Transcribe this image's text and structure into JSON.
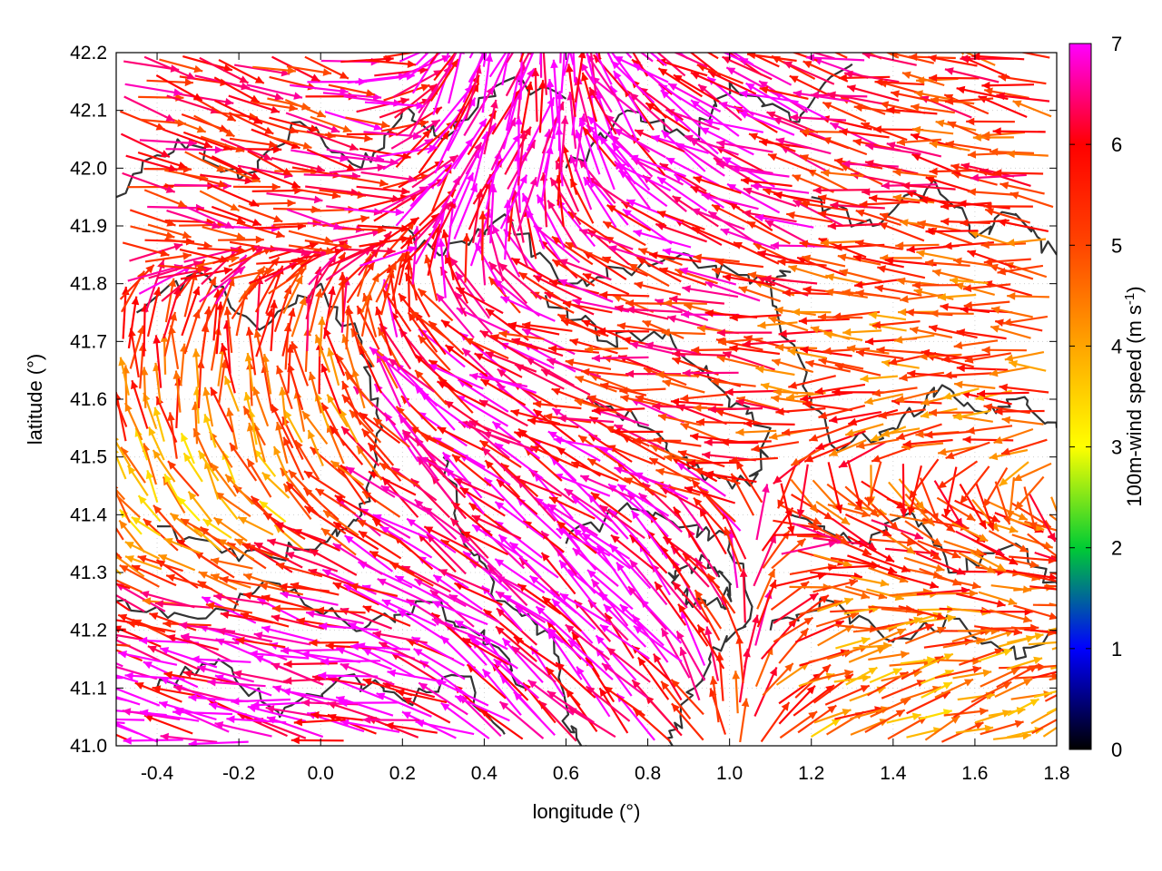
{
  "chart_data": {
    "type": "vector-field",
    "xlabel": "longitude (°)",
    "ylabel": "latitude (°)",
    "xlim": [
      -0.5,
      1.8
    ],
    "ylim": [
      41.0,
      42.2
    ],
    "x_ticks": [
      "-0.4",
      "-0.2",
      "0.0",
      "0.2",
      "0.4",
      "0.6",
      "0.8",
      "1.0",
      "1.2",
      "1.4",
      "1.6",
      "1.8"
    ],
    "y_ticks": [
      "41.0",
      "41.1",
      "41.2",
      "41.3",
      "41.4",
      "41.5",
      "41.6",
      "41.7",
      "41.8",
      "41.9",
      "42.0",
      "42.1",
      "42.2"
    ],
    "grid": true,
    "colorbar": {
      "label_main": "100m-wind speed (m s",
      "label_sup": "-1",
      "label_end": ")",
      "range": [
        0,
        7
      ],
      "ticks": [
        "0",
        "1",
        "2",
        "3",
        "4",
        "5",
        "6",
        "7"
      ],
      "colors": [
        "#000000",
        "#0000ff",
        "#00cc33",
        "#ffff00",
        "#ffa500",
        "#ff4500",
        "#ff0000",
        "#ff00ff"
      ]
    },
    "contour_color": "#333333",
    "regions": [
      {
        "lon": [
          -0.5,
          0.1
        ],
        "lat": [
          41.85,
          42.2
        ],
        "u": 1.3,
        "v": -0.35,
        "speed": 5.8
      },
      {
        "lon": [
          -0.5,
          0.15
        ],
        "lat": [
          41.35,
          41.85
        ],
        "u": 0.3,
        "v": 0.9,
        "speed": 6.5
      },
      {
        "lon": [
          -0.35,
          0.05
        ],
        "lat": [
          41.35,
          41.6
        ],
        "u": -0.6,
        "v": 0.5,
        "speed": 2.5
      },
      {
        "lon": [
          -0.5,
          0.4
        ],
        "lat": [
          41.0,
          41.35
        ],
        "u": -1.4,
        "v": 0.25,
        "speed": 7.0
      },
      {
        "lon": [
          0.2,
          0.6
        ],
        "lat": [
          41.3,
          41.6
        ],
        "u": -1.0,
        "v": 0.8,
        "speed": 6.8
      },
      {
        "lon": [
          0.25,
          0.75
        ],
        "lat": [
          41.85,
          42.2
        ],
        "u": 0.4,
        "v": 1.0,
        "speed": 6.8
      },
      {
        "lon": [
          0.5,
          1.1
        ],
        "lat": [
          41.45,
          41.85
        ],
        "u": -1.3,
        "v": 0.15,
        "speed": 5.5
      },
      {
        "lon": [
          0.75,
          1.15
        ],
        "lat": [
          41.85,
          42.2
        ],
        "u": -1.2,
        "v": 0.6,
        "speed": 6.8
      },
      {
        "lon": [
          1.15,
          1.8
        ],
        "lat": [
          41.85,
          42.2
        ],
        "u": -1.2,
        "v": 0.2,
        "speed": 5.5
      },
      {
        "lon": [
          1.15,
          1.8
        ],
        "lat": [
          41.45,
          41.85
        ],
        "u": -1.3,
        "v": 0.05,
        "speed": 4.8
      },
      {
        "lon": [
          0.55,
          1.0
        ],
        "lat": [
          41.0,
          41.45
        ],
        "u": -0.9,
        "v": 0.9,
        "speed": 6.8
      },
      {
        "lon": [
          1.0,
          1.8
        ],
        "lat": [
          41.25,
          41.45
        ],
        "u": 1.0,
        "v": -0.5,
        "speed": 5.5
      },
      {
        "lon": [
          0.95,
          1.8
        ],
        "lat": [
          41.0,
          41.25
        ],
        "u": 1.0,
        "v": 0.45,
        "speed": 4.3
      }
    ]
  }
}
